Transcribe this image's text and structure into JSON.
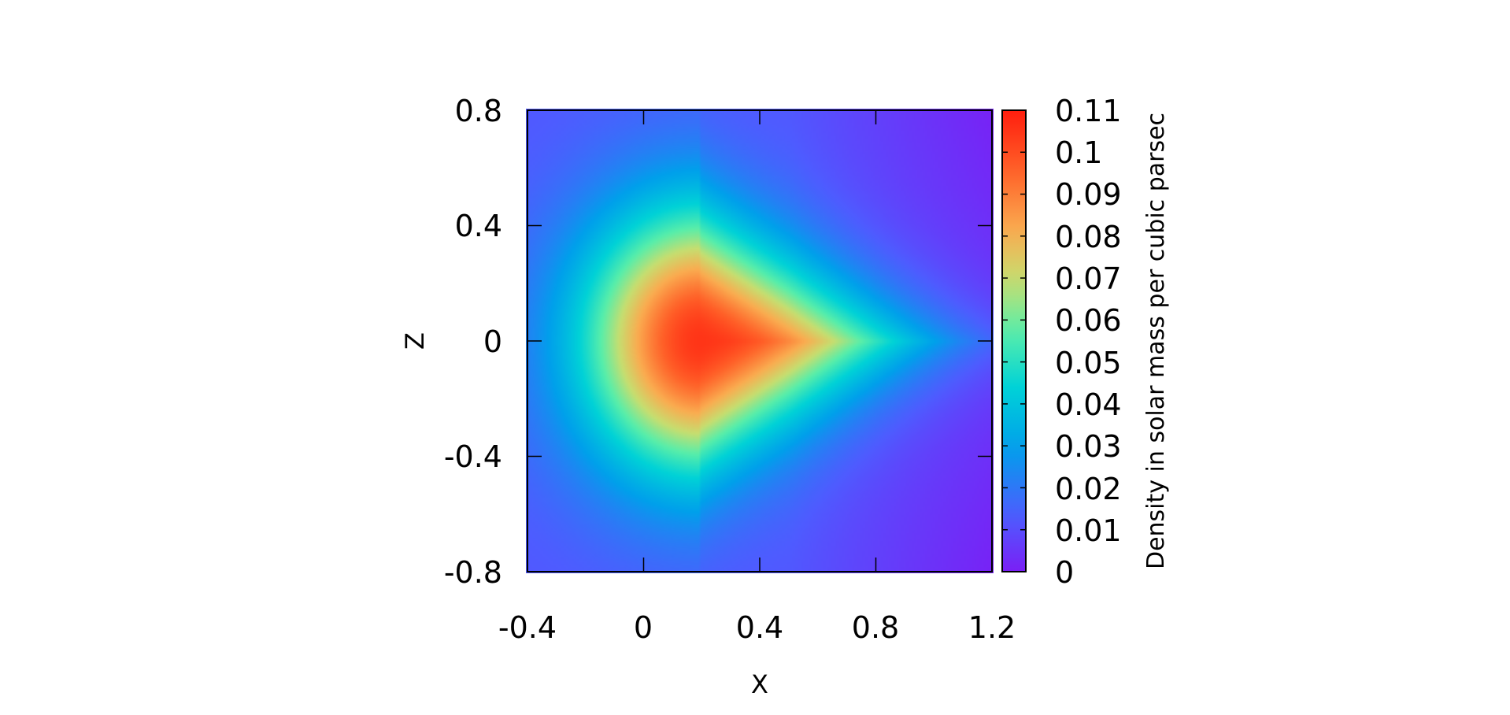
{
  "chart_data": {
    "type": "heatmap",
    "title": "",
    "xlabel": "X",
    "ylabel": "Z",
    "xlim": [
      -0.4,
      1.2
    ],
    "ylim": [
      -0.8,
      0.8
    ],
    "x_ticks": [
      "-0.4",
      "0",
      "0.4",
      "0.8",
      "1.2"
    ],
    "y_ticks": [
      "0.8",
      "0.4",
      "0",
      "-0.4",
      "-0.8"
    ],
    "colorbar": {
      "label": "Density in solar mass per cubic parsec",
      "range": [
        0,
        0.11
      ],
      "ticks": [
        "0.11",
        "0.1",
        "0.09",
        "0.08",
        "0.07",
        "0.06",
        "0.05",
        "0.04",
        "0.03",
        "0.02",
        "0.01",
        "0"
      ],
      "colormap": "rainbow (purple-blue-cyan-green-yellow-orange-red)"
    },
    "field": {
      "description": "triangular density peak pointing toward +X",
      "peak_x": 0.2,
      "peak_z": 0.0,
      "peak_value": 0.105,
      "min_value": 0.012
    },
    "grid": false
  },
  "colors": {
    "low": "#7a1ff5",
    "high": "#ff1e0e"
  }
}
